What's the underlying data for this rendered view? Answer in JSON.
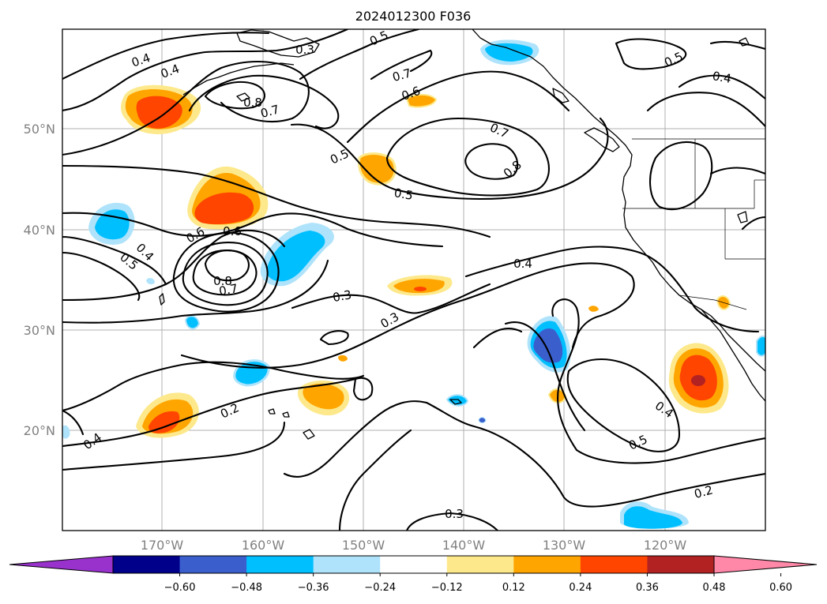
{
  "title": "2024012300 F036",
  "map": {
    "lat_labels": [
      "50°N",
      "40°N",
      "30°N",
      "20°N"
    ],
    "lon_labels": [
      "170°W",
      "160°W",
      "150°W",
      "140°W",
      "130°W",
      "120°W"
    ],
    "contour_labels": [
      "0.4",
      "0.4",
      "0.3",
      "0.5",
      "0.8",
      "0.7",
      "0.7",
      "0.6",
      "0.5",
      "0.7",
      "0.8",
      "0.5",
      "0.4",
      "0.5",
      "0.6",
      "0.6",
      "0.5",
      "0.4",
      "0.8",
      "0.7",
      "0.3",
      "0.3",
      "0.4",
      "0.2",
      "0.4",
      "0.5",
      "0.4",
      "0.2",
      "0.3"
    ],
    "field_colors": {
      "positive_light": "#fde98b",
      "positive_mid": "#ffa500",
      "positive_strong": "#ff4500",
      "positive_max": "#b22222",
      "negative_light": "#aee3fb",
      "negative_mid": "#00bfff",
      "negative_strong": "#3a5fcd"
    }
  },
  "colorbar": {
    "tick_labels": [
      "−0.60",
      "−0.48",
      "−0.36",
      "−0.24",
      "−0.12",
      "0.12",
      "0.24",
      "0.36",
      "0.48",
      "0.60"
    ],
    "colors": [
      "#9932cc",
      "#00008b",
      "#3a5fcd",
      "#00bfff",
      "#aee3fb",
      "#ffffff",
      "#fde98b",
      "#ffa500",
      "#ff4500",
      "#b22222",
      "#ff88a8"
    ]
  }
}
